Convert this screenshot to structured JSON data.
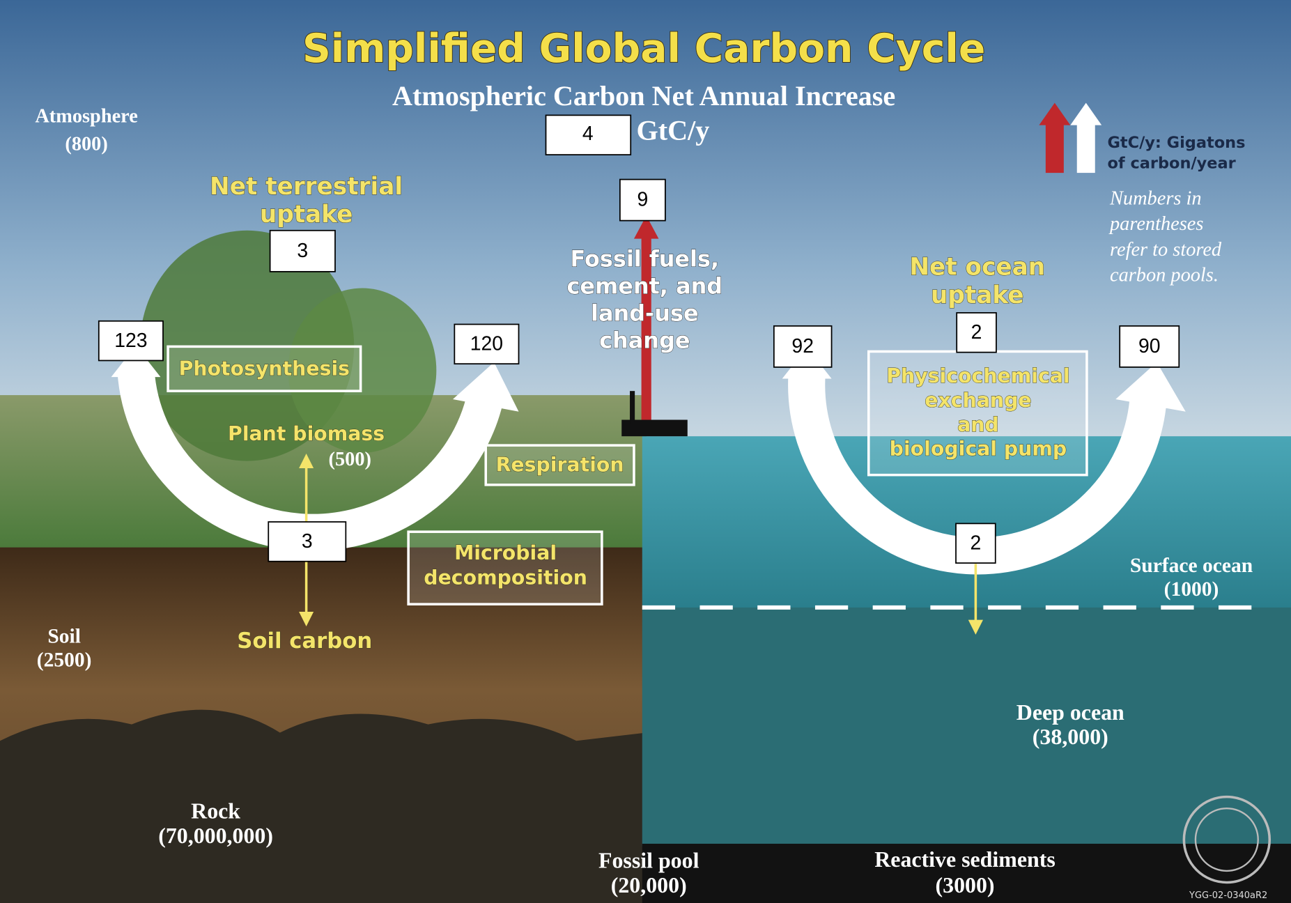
{
  "title": "Simplified Global Carbon Cycle",
  "subtitle": "Atmospheric Carbon Net Annual Increase",
  "net_increase": {
    "value": 4,
    "unit": "GtC/y"
  },
  "legend": [
    "GtC/y: Gigatons",
    "of carbon/year"
  ],
  "note": [
    "Numbers in",
    "parentheses",
    "refer to stored",
    "carbon pools."
  ],
  "pools": {
    "atmosphere": {
      "name": "Atmosphere",
      "amount": "(800)"
    },
    "plant_biomass": {
      "name": "Plant biomass",
      "amount": "(500)"
    },
    "soil": {
      "name": "Soil",
      "amount": "(2500)"
    },
    "rock": {
      "name": "Rock",
      "amount": "(70,000,000)"
    },
    "fossil_pool": {
      "name": "Fossil pool",
      "amount": "(20,000)"
    },
    "surface_ocean": {
      "name": "Surface ocean",
      "amount": "(1000)"
    },
    "deep_ocean": {
      "name": "Deep ocean",
      "amount": "(38,000)"
    },
    "reactive_sediments": {
      "name": "Reactive sediments",
      "amount": "(3000)"
    }
  },
  "labels": {
    "net_terrestrial": [
      "Net terrestrial",
      "uptake"
    ],
    "fossil_fuels": [
      "Fossil fuels,",
      "cement, and",
      "land-use",
      "change"
    ],
    "net_ocean": [
      "Net ocean",
      "uptake"
    ],
    "photosynthesis": "Photosynthesis",
    "physicochemical": [
      "Physicochemical",
      "exchange",
      "and",
      "biological pump"
    ],
    "respiration": "Respiration",
    "microbial": [
      "Microbial",
      "decomposition"
    ],
    "soil_carbon": "Soil carbon"
  },
  "flows": {
    "net_terrestrial_uptake": 3,
    "fossil_emissions": 9,
    "net_ocean_uptake": 2,
    "photosynthesis": 123,
    "respiration": 120,
    "ocean_in": 92,
    "ocean_out": 90,
    "to_soil": 3,
    "to_deep_ocean": 2
  },
  "code": "YGG-02-0340aR2"
}
